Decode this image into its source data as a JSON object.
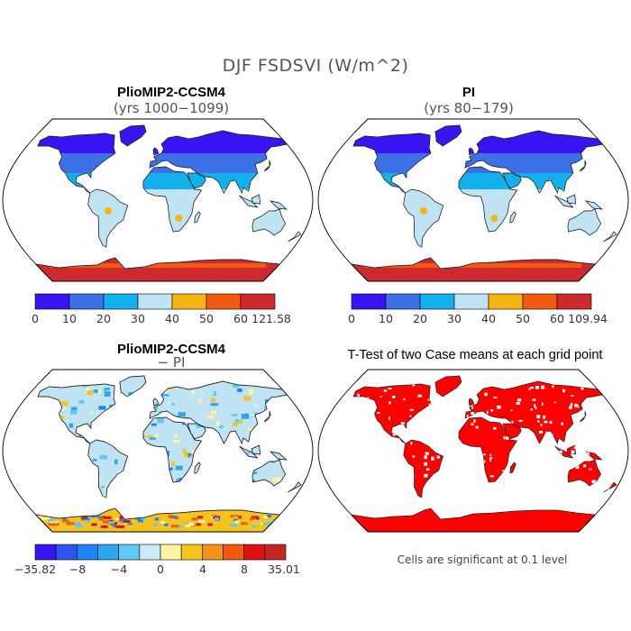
{
  "figure": {
    "title": "DJF FSDSVI (W/m^2)"
  },
  "panels": [
    {
      "title": "PlioMIP2-CCSM4",
      "subtitle": "(yrs 1000−1099)"
    },
    {
      "title": "PI",
      "subtitle": "(yrs 80−179)"
    },
    {
      "title": "PlioMIP2-CCSM4",
      "subtitle": "− PI"
    },
    {
      "title": "T-Test of two Case means at each grid point",
      "note": "Cells are significant at 0.1 level"
    }
  ],
  "colorbars": {
    "cb1": {
      "colors": [
        "#3a14f0",
        "#3d6fe6",
        "#12b0ec",
        "#bfe3f2",
        "#f7b415",
        "#f25a10",
        "#cc2a2e"
      ],
      "labels": [
        "0",
        "10",
        "20",
        "30",
        "40",
        "50",
        "60",
        "121.58"
      ]
    },
    "cb2": {
      "colors": [
        "#3a14f0",
        "#3d6fe6",
        "#12b0ec",
        "#bfe3f2",
        "#f7b415",
        "#f25a10",
        "#cc2a2e"
      ],
      "labels": [
        "0",
        "10",
        "20",
        "30",
        "40",
        "50",
        "60",
        "109.94"
      ]
    },
    "cb3": {
      "colors": [
        "#3a14f0",
        "#2f55f0",
        "#1d85f2",
        "#2aa6f2",
        "#5fcaf2",
        "#cfeaf7",
        "#fff4a0",
        "#f5c41c",
        "#f59218",
        "#f25a10",
        "#e01010",
        "#c52525"
      ],
      "labels": [
        "−35.82",
        "−8",
        "−4",
        "0",
        "4",
        "8",
        "35.01"
      ]
    }
  },
  "maps": {
    "ocean_color": "#ffffff",
    "coast_color": "#222222",
    "significance_color": "#ff0000"
  }
}
